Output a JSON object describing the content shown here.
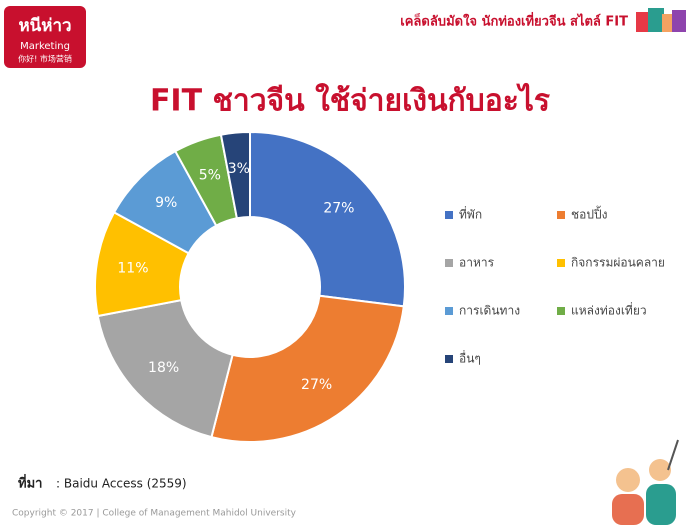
{
  "header": {
    "logo": "หนีห่าว",
    "logo_sub": "Marketing",
    "logo_tag": "你好! 市场营销",
    "tagline": "เคล็ดลับมัดใจ นักท่องเที่ยวจีน สไตล์ FIT"
  },
  "chart_data": {
    "type": "donut",
    "title": "FIT ชาวจีน ใช้จ่ายเงินกับอะไร",
    "categories": [
      "ที่พัก",
      "ชอปปิ้ง",
      "อาหาร",
      "กิจกรรมผ่อนคลาย",
      "การเดินทาง",
      "แหล่งท่องเที่ยว",
      "อื่นๆ"
    ],
    "values": [
      27,
      27,
      18,
      11,
      9,
      5,
      3
    ],
    "value_labels": [
      "27%",
      "27%",
      "18%",
      "11%",
      "9%",
      "5%",
      "3%"
    ],
    "colors": [
      "#4472c4",
      "#ed7d31",
      "#a5a5a5",
      "#ffc000",
      "#5b9bd5",
      "#70ad47",
      "#264478"
    ],
    "legend": "right"
  },
  "source": {
    "label": "ที่มา",
    "text": ": Baidu Access (2559)"
  },
  "footer": "Copyright © 2017 | College of Management Mahidol University"
}
